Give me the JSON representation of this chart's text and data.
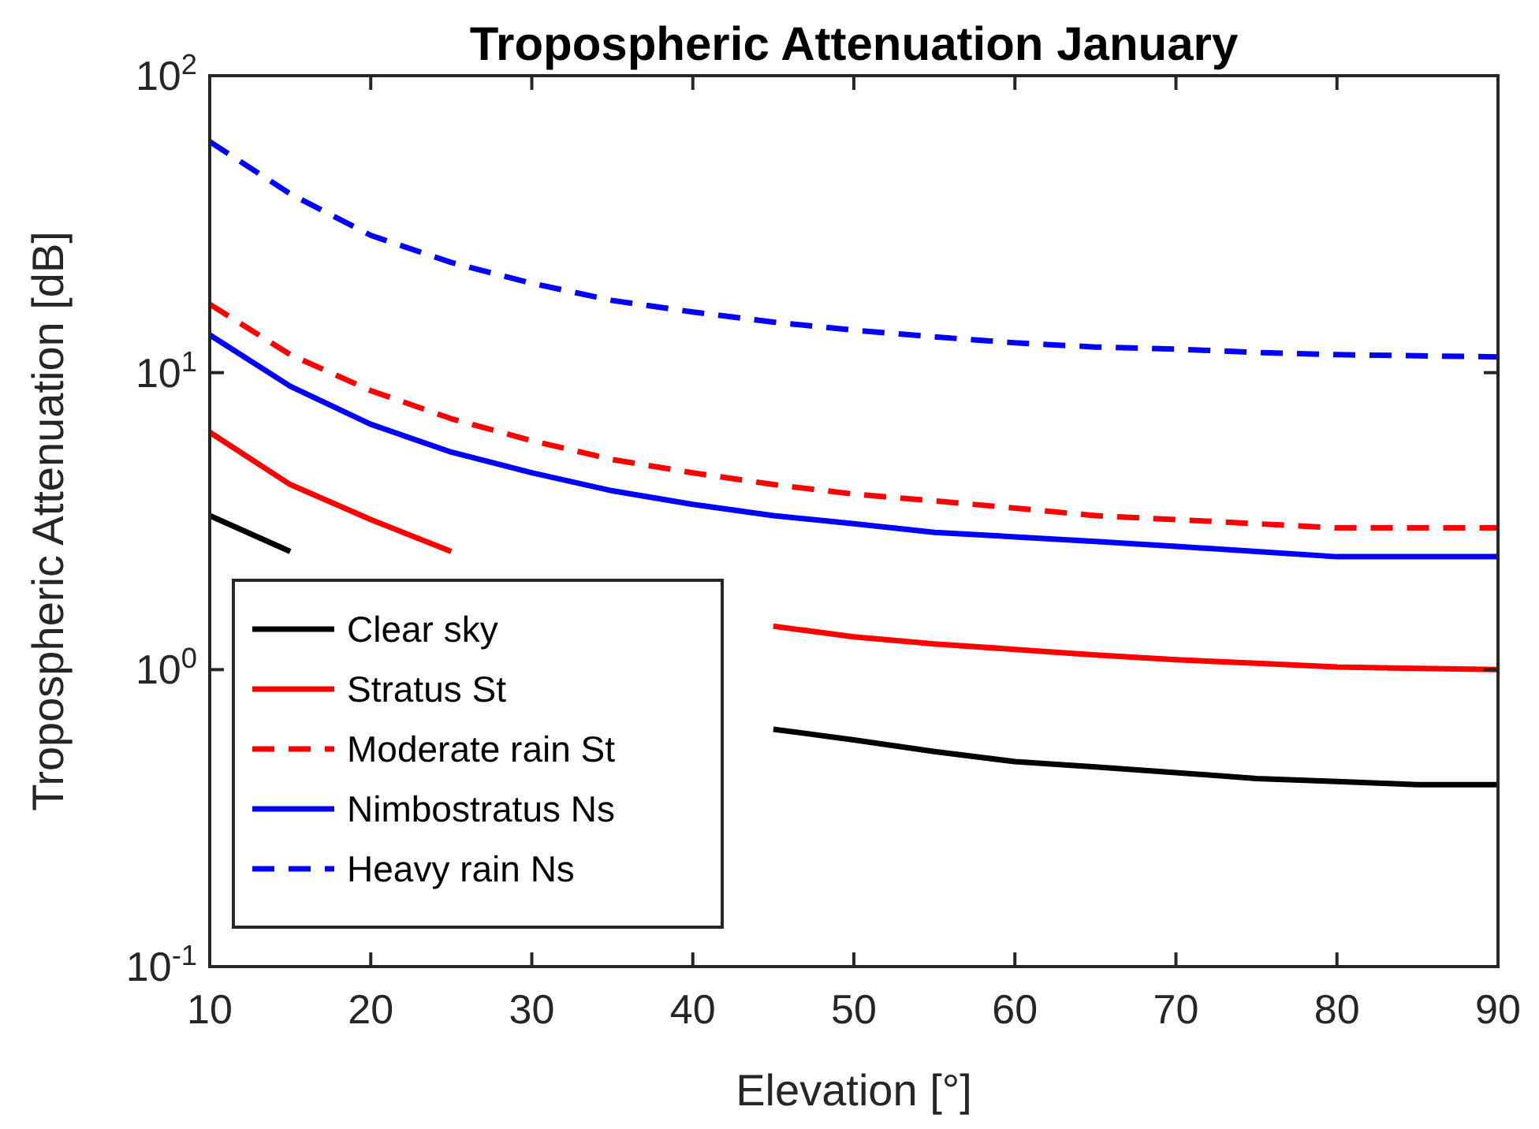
{
  "chart_data": {
    "type": "line",
    "title": "Tropospheric Attenuation January",
    "xlabel": "Elevation [°]",
    "ylabel": "Tropospheric Attenuation [dB]",
    "x": [
      10,
      15,
      20,
      25,
      30,
      35,
      40,
      45,
      50,
      55,
      60,
      65,
      70,
      75,
      80,
      85,
      90
    ],
    "xlim": [
      10,
      90
    ],
    "xticks": [
      10,
      20,
      30,
      40,
      50,
      60,
      70,
      80,
      90
    ],
    "ylim": [
      0.1,
      100
    ],
    "yticks": [
      {
        "value": 0.1,
        "label": "10$^{-1}$"
      },
      {
        "value": 1,
        "label": "10$^{0}$"
      },
      {
        "value": 10,
        "label": "10$^{1}$"
      },
      {
        "value": 100,
        "label": "10$^{2}$"
      }
    ],
    "log": "y",
    "grid": false,
    "legend": "bottom left",
    "marker": "none",
    "series": [
      {
        "name": "Clear sky",
        "color": "#000000",
        "line_style": "solid",
        "values": [
          3.3,
          2.5,
          null,
          null,
          null,
          null,
          null,
          0.63,
          0.58,
          0.53,
          0.49,
          0.47,
          0.45,
          0.43,
          0.42,
          0.41,
          0.41
        ]
      },
      {
        "name": "Stratus St",
        "color": "#ff0000",
        "line_style": "solid",
        "values": [
          6.3,
          4.2,
          3.2,
          2.5,
          null,
          null,
          null,
          1.4,
          1.29,
          1.22,
          1.17,
          1.12,
          1.08,
          1.05,
          1.02,
          1.01,
          1.0
        ]
      },
      {
        "name": "Moderate rain St",
        "color": "#ff0000",
        "line_style": "dashed",
        "values": [
          17,
          11.5,
          8.7,
          7,
          5.9,
          5.1,
          4.6,
          4.2,
          3.9,
          3.7,
          3.5,
          3.3,
          3.2,
          3.1,
          3.0,
          3.0,
          3.0
        ]
      },
      {
        "name": "Nimbostratus Ns",
        "color": "#0000ff",
        "line_style": "solid",
        "values": [
          13.4,
          9,
          6.7,
          5.4,
          4.6,
          4.0,
          3.6,
          3.3,
          3.1,
          2.9,
          2.8,
          2.7,
          2.6,
          2.5,
          2.4,
          2.4,
          2.4
        ]
      },
      {
        "name": "Heavy rain Ns",
        "color": "#0000ff",
        "line_style": "dashed",
        "values": [
          60,
          40,
          29,
          23.5,
          20,
          17.5,
          16,
          14.8,
          13.9,
          13.2,
          12.6,
          12.2,
          12,
          11.7,
          11.5,
          11.4,
          11.3
        ]
      }
    ]
  }
}
